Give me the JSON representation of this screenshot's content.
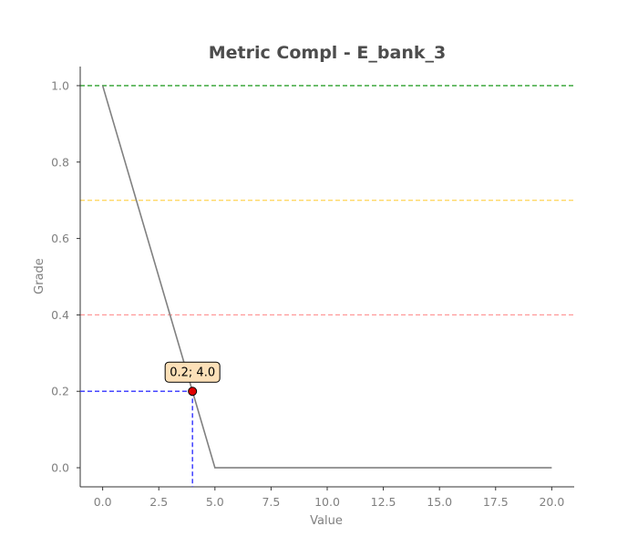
{
  "chart_data": {
    "type": "line",
    "title": "Metric Compl - E_bank_3",
    "xlabel": "Value",
    "ylabel": "Grade",
    "xlim": [
      -1.0,
      21.0
    ],
    "ylim": [
      -0.05,
      1.05
    ],
    "xticks": [
      0.0,
      2.5,
      5.0,
      7.5,
      10.0,
      12.5,
      15.0,
      17.5,
      20.0
    ],
    "xtick_labels": [
      "0.0",
      "2.5",
      "5.0",
      "7.5",
      "10.0",
      "12.5",
      "15.0",
      "17.5",
      "20.0"
    ],
    "yticks": [
      0.0,
      0.2,
      0.4,
      0.6,
      0.8,
      1.0
    ],
    "ytick_labels": [
      "0.0",
      "0.2",
      "0.4",
      "0.6",
      "0.8",
      "1.0"
    ],
    "grid": false,
    "legend": null,
    "series": [
      {
        "x": [
          0,
          5,
          20
        ],
        "y": [
          1.0,
          0.0,
          0.0
        ],
        "color": "#808080"
      }
    ],
    "thresholds": [
      {
        "y": 1.0,
        "color": "#2ca02c"
      },
      {
        "y": 0.7,
        "color": "#ffd966"
      },
      {
        "y": 0.4,
        "color": "#ff9999"
      }
    ],
    "highlight_point": {
      "x": 4.0,
      "y": 0.2,
      "label": "0.2; 4.0",
      "point_color": "#e00000",
      "guide_color": "#3333ff",
      "label_bg": "#fce0b8"
    }
  }
}
